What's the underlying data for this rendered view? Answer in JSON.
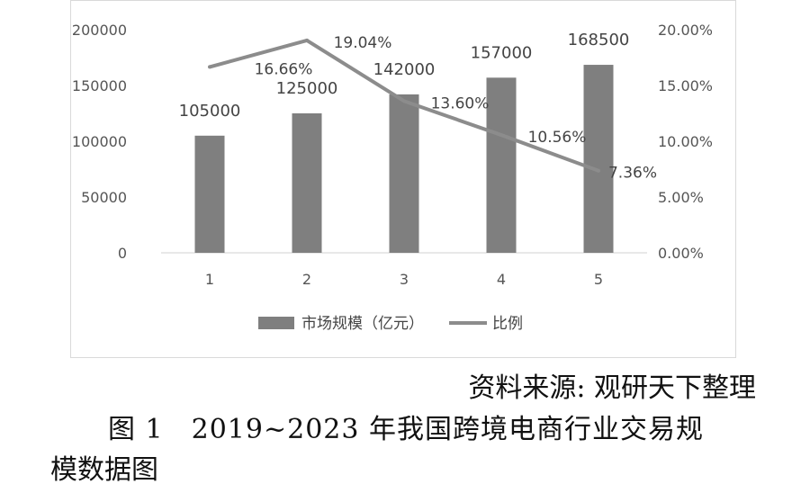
{
  "chart_data": {
    "type": "bar+line",
    "categories": [
      "1",
      "2",
      "3",
      "4",
      "5"
    ],
    "series": [
      {
        "name": "市场规模（亿元）",
        "type": "bar",
        "axis": "left",
        "values": [
          105000,
          125000,
          142000,
          157000,
          168500
        ],
        "labels": [
          "105000",
          "125000",
          "142000",
          "157000",
          "168500"
        ],
        "color": "#7f7f7f"
      },
      {
        "name": "比例",
        "type": "line",
        "axis": "right",
        "values": [
          16.66,
          19.04,
          13.6,
          10.56,
          7.36
        ],
        "labels": [
          "16.66%",
          "19.04%",
          "13.60%",
          "10.56%",
          "7.36%"
        ],
        "color": "#8c8c8c"
      }
    ],
    "y_left": {
      "min": 0,
      "max": 200000,
      "ticks": [
        "0",
        "50000",
        "100000",
        "150000",
        "200000"
      ]
    },
    "y_right": {
      "min": 0,
      "max": 20,
      "ticks": [
        "0.00%",
        "5.00%",
        "10.00%",
        "15.00%",
        "20.00%"
      ]
    },
    "legend_position": "bottom",
    "grid": false
  },
  "source": "资料来源: 观研天下整理",
  "figure_title_line1": "图 1　2019~2023 年我国跨境电商行业交易规",
  "figure_title_line2": "模数据图"
}
